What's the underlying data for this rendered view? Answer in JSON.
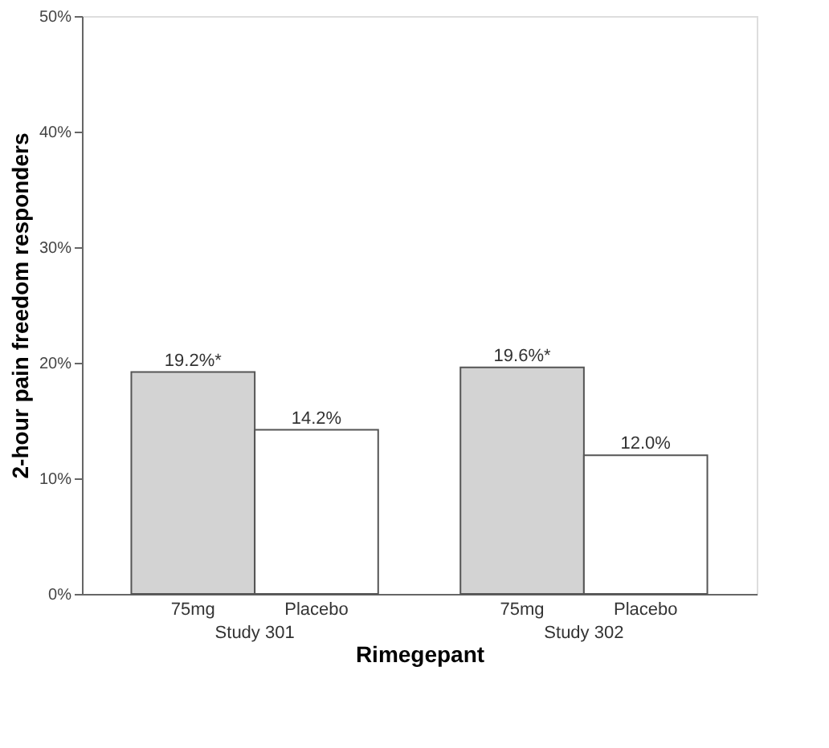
{
  "chart_data": {
    "type": "bar",
    "xlabel": "Rimegepant",
    "ylabel": "2-hour pain freedom responders",
    "categories": [
      "Study 301",
      "Study 302"
    ],
    "series": [
      {
        "name": "75mg",
        "color": "#d3d3d3",
        "values": [
          19.2,
          19.6
        ],
        "value_labels": [
          "19.2%*",
          "19.6%*"
        ]
      },
      {
        "name": "Placebo",
        "color": "#ffffff",
        "values": [
          14.2,
          12.0
        ],
        "value_labels": [
          "14.2%",
          "12.0%"
        ]
      }
    ],
    "ylim": [
      0,
      50
    ],
    "yticks": [
      {
        "value": 0,
        "label": "0%"
      },
      {
        "value": 10,
        "label": "10%"
      },
      {
        "value": 20,
        "label": "20%"
      },
      {
        "value": 30,
        "label": "30%"
      },
      {
        "value": 40,
        "label": "40%"
      },
      {
        "value": 50,
        "label": "50%"
      }
    ],
    "grid": false,
    "legend": false
  }
}
